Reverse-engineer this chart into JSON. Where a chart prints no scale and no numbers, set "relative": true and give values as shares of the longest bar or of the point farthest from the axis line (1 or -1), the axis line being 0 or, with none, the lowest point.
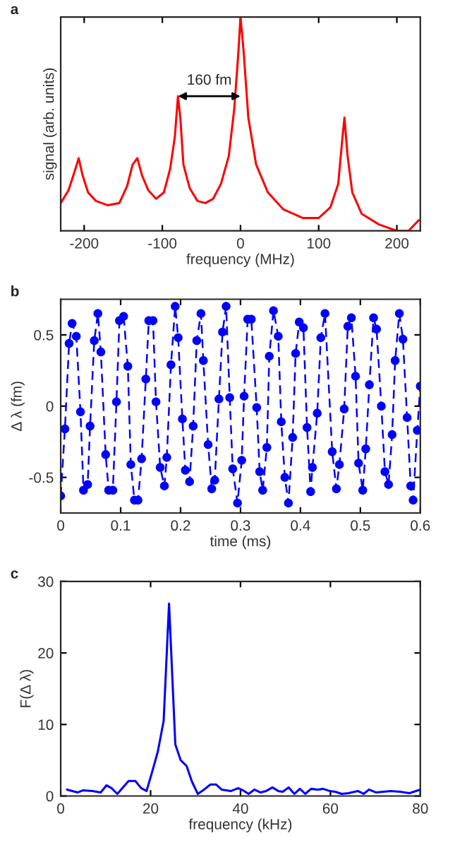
{
  "chart_data": [
    {
      "type": "line",
      "title": "a",
      "xlabel": "frequency (MHz)",
      "ylabel": "signal (arb. units)",
      "relative": true,
      "tick_labels": "x",
      "xlim": [
        -230,
        230
      ],
      "xticks": [
        -200,
        -100,
        0,
        100,
        200
      ],
      "grid": false,
      "legend": false,
      "annotations": [
        "160 fm"
      ],
      "series": [
        {
          "color": "#ff0000",
          "x": [
            -230,
            -220,
            -212,
            -207,
            -202,
            -195,
            -185,
            -170,
            -155,
            -145,
            -138,
            -132,
            -126,
            -118,
            -108,
            -98,
            -90,
            -84,
            -80,
            -77,
            -73,
            -65,
            -55,
            -45,
            -35,
            -25,
            -15,
            -8,
            -3,
            0,
            4,
            10,
            20,
            35,
            55,
            80,
            100,
            115,
            125,
            130,
            133,
            137,
            143,
            155,
            177,
            200,
            215,
            228
          ],
          "values": [
            0.13,
            0.19,
            0.28,
            0.34,
            0.26,
            0.18,
            0.14,
            0.12,
            0.13,
            0.21,
            0.31,
            0.34,
            0.26,
            0.19,
            0.15,
            0.18,
            0.29,
            0.44,
            0.63,
            0.53,
            0.31,
            0.2,
            0.14,
            0.13,
            0.15,
            0.22,
            0.35,
            0.57,
            0.82,
            1.0,
            0.84,
            0.53,
            0.31,
            0.18,
            0.1,
            0.06,
            0.06,
            0.11,
            0.22,
            0.42,
            0.53,
            0.35,
            0.18,
            0.08,
            0.03,
            0.0,
            0.0,
            0.05
          ]
        }
      ]
    },
    {
      "type": "line",
      "title": "b",
      "xlabel": "time (ms)",
      "ylabel": "Δ λ (fm)",
      "xlim": [
        0,
        0.6
      ],
      "xticks": [
        0,
        0.1,
        0.2,
        0.3,
        0.4,
        0.5,
        0.6
      ],
      "ylim": [
        -0.75,
        0.75
      ],
      "yticks": [
        -0.5,
        0,
        0.5
      ],
      "grid": false,
      "legend": false,
      "marker": "circle",
      "line_style": "dashed",
      "series": [
        {
          "color": "#0000ff",
          "x": [
            0.0,
            0.007,
            0.014,
            0.019,
            0.026,
            0.033,
            0.038,
            0.045,
            0.049,
            0.056,
            0.062,
            0.067,
            0.075,
            0.08,
            0.087,
            0.093,
            0.098,
            0.105,
            0.112,
            0.117,
            0.123,
            0.129,
            0.135,
            0.142,
            0.147,
            0.154,
            0.159,
            0.166,
            0.173,
            0.177,
            0.184,
            0.191,
            0.196,
            0.203,
            0.208,
            0.215,
            0.221,
            0.227,
            0.234,
            0.238,
            0.246,
            0.252,
            0.257,
            0.264,
            0.27,
            0.276,
            0.282,
            0.287,
            0.295,
            0.302,
            0.306,
            0.312,
            0.318,
            0.327,
            0.332,
            0.337,
            0.344,
            0.348,
            0.355,
            0.363,
            0.368,
            0.374,
            0.38,
            0.387,
            0.392,
            0.398,
            0.405,
            0.411,
            0.417,
            0.42,
            0.428,
            0.434,
            0.441,
            0.453,
            0.46,
            0.465,
            0.473,
            0.479,
            0.485,
            0.492,
            0.497,
            0.504,
            0.509,
            0.515,
            0.522,
            0.527,
            0.535,
            0.541,
            0.547,
            0.553,
            0.558,
            0.565,
            0.571,
            0.578,
            0.584,
            0.588,
            0.595,
            0.6
          ],
          "values": [
            -0.63,
            -0.16,
            0.44,
            0.58,
            0.49,
            -0.04,
            -0.59,
            -0.55,
            -0.14,
            0.46,
            0.65,
            0.38,
            -0.34,
            -0.59,
            -0.59,
            0.03,
            0.6,
            0.63,
            0.28,
            -0.41,
            -0.66,
            -0.66,
            -0.37,
            0.19,
            0.6,
            0.6,
            0.03,
            -0.43,
            -0.56,
            -0.36,
            0.29,
            0.7,
            0.48,
            -0.09,
            -0.45,
            -0.53,
            -0.14,
            0.46,
            0.65,
            0.32,
            -0.27,
            -0.58,
            -0.52,
            0.05,
            0.52,
            0.7,
            0.06,
            -0.44,
            -0.68,
            -0.38,
            0.07,
            0.61,
            0.61,
            -0.01,
            -0.46,
            -0.59,
            -0.29,
            0.35,
            0.67,
            0.49,
            -0.11,
            -0.5,
            -0.68,
            -0.22,
            0.37,
            0.59,
            0.55,
            -0.15,
            -0.6,
            -0.43,
            -0.05,
            0.48,
            0.65,
            -0.32,
            -0.58,
            -0.41,
            -0.02,
            0.56,
            0.62,
            0.21,
            -0.4,
            -0.59,
            -0.3,
            0.15,
            0.62,
            0.54,
            0.0,
            -0.46,
            -0.55,
            -0.2,
            0.32,
            0.65,
            0.47,
            -0.08,
            -0.56,
            -0.66,
            -0.17,
            0.14
          ]
        }
      ]
    },
    {
      "type": "line",
      "title": "c",
      "xlabel": "frequency (kHz)",
      "ylabel": "F(Δ λ)",
      "xlim": [
        0,
        80
      ],
      "xticks": [
        0,
        20,
        40,
        60,
        80
      ],
      "ylim": [
        0,
        30
      ],
      "yticks": [
        0,
        10,
        20,
        30
      ],
      "grid": false,
      "legend": false,
      "series": [
        {
          "color": "#0000ff",
          "x": [
            1.4,
            2.6,
            3.8,
            5.0,
            7.1,
            8.9,
            10.2,
            11.3,
            12.6,
            15.1,
            16.6,
            17.9,
            19.1,
            20.4,
            21.6,
            22.9,
            24.1,
            25.5,
            26.7,
            28.0,
            29.2,
            30.5,
            31.9,
            33.3,
            34.6,
            35.8,
            37.9,
            39.5,
            40.8,
            41.8,
            43.1,
            44.4,
            45.7,
            47.1,
            48.4,
            49.4,
            50.7,
            52.0,
            53.2,
            54.4,
            55.7,
            57.2,
            58.4,
            59.8,
            61.1,
            62.5,
            64.0,
            66.1,
            67.4,
            68.6,
            70.1,
            73.4,
            75.5,
            77.6,
            80.0
          ],
          "values": [
            0.9,
            0.7,
            0.5,
            0.8,
            0.7,
            0.5,
            1.5,
            1.1,
            0.3,
            2.1,
            2.1,
            1.1,
            0.7,
            3.5,
            6.2,
            10.5,
            26.9,
            7.2,
            5.0,
            4.2,
            2.0,
            0.3,
            0.9,
            1.6,
            1.6,
            0.9,
            0.7,
            1.1,
            0.7,
            0.3,
            0.9,
            0.5,
            0.7,
            1.2,
            0.7,
            0.6,
            1.2,
            0.3,
            1.0,
            0.3,
            1.0,
            0.9,
            1.0,
            0.7,
            0.6,
            0.3,
            0.4,
            0.7,
            0.3,
            0.9,
            0.5,
            0.7,
            0.6,
            0.4,
            0.9
          ]
        }
      ]
    }
  ]
}
